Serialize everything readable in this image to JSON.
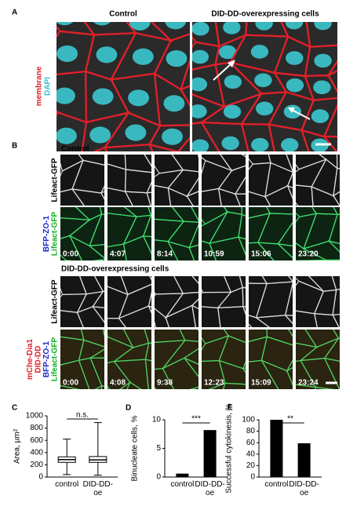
{
  "panel_labels": [
    "A",
    "B",
    "C",
    "D",
    "E"
  ],
  "panel_a": {
    "columns": [
      "Control",
      "DID-DD-overexpressing cells"
    ],
    "stain_labels": [
      "membrane",
      "DAPI"
    ]
  },
  "panel_b": {
    "conditions": [
      {
        "title": "Control",
        "row_label": "Lifeact-GFP",
        "merge_labels": [
          "BFP-ZO-1",
          "Lifeact-GFP"
        ],
        "times": [
          "0:00",
          "4:07",
          "8:14",
          "10:59",
          "15:06",
          "23:20"
        ]
      },
      {
        "title": "DID-DD-overexpressing cells",
        "row_label": "Lifeact-GFP",
        "merge_labels": [
          "mChe-Dia1",
          "DID-DD",
          "BFP-ZO-1",
          "Lifeact-GFP"
        ],
        "times": [
          "0:00",
          "4:08",
          "9:38",
          "12:23",
          "15:09",
          "23:24"
        ]
      }
    ]
  },
  "chart_data": [
    {
      "type": "box",
      "ylabel": "Area, µm²",
      "categories": [
        "control",
        "DID-DD-oe"
      ],
      "boxes": [
        {
          "min": 40,
          "q1": 240,
          "median": 285,
          "q3": 330,
          "max": 620
        },
        {
          "min": 30,
          "q1": 240,
          "median": 280,
          "q3": 335,
          "max": 890
        }
      ],
      "ylim": [
        0,
        1000
      ],
      "yticks": [
        0,
        200,
        400,
        600,
        800,
        1000
      ],
      "annotation": "n.s.",
      "color": "#000000"
    },
    {
      "type": "bar",
      "ylabel": "Binucleate cells, %",
      "categories": [
        "control",
        "DID-DD-oe"
      ],
      "values": [
        0.6,
        8.2
      ],
      "ylim": [
        0,
        10
      ],
      "yticks": [
        0,
        5,
        10
      ],
      "annotation": "***",
      "color": "#000000"
    },
    {
      "type": "bar",
      "ylabel": "Successful cytokinesis, %",
      "categories": [
        "control",
        "DID-DD-oe"
      ],
      "values": [
        100,
        59
      ],
      "ylim": [
        0,
        100
      ],
      "yticks": [
        0,
        20,
        40,
        60,
        80,
        100
      ],
      "annotation": "**",
      "color": "#000000"
    }
  ]
}
